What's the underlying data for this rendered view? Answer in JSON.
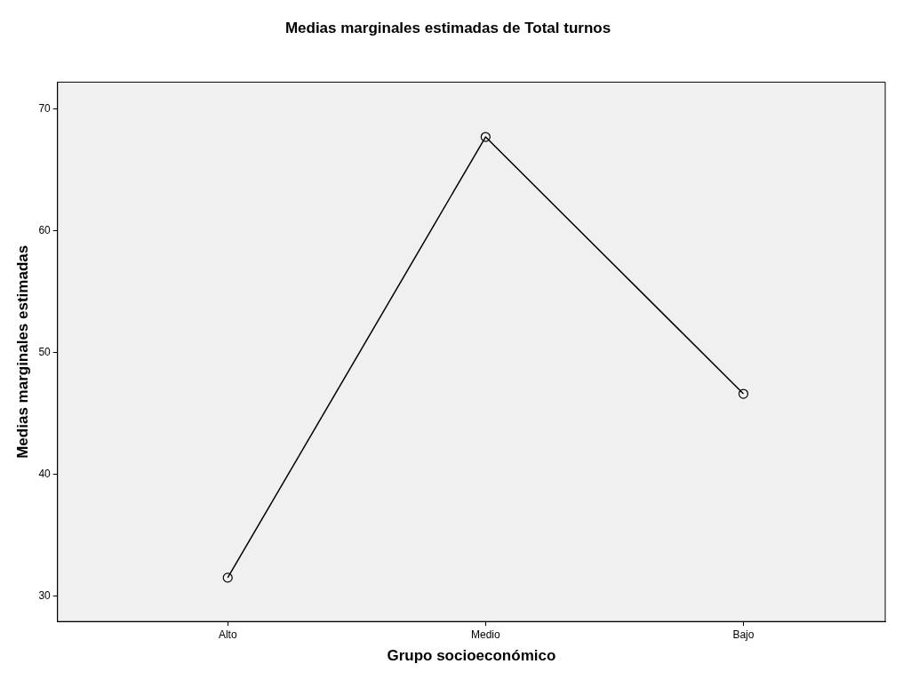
{
  "chart_data": {
    "type": "line",
    "title": "Medias marginales estimadas de Total turnos",
    "xlabel": "Grupo socioeconómico",
    "ylabel": "Medias marginales estimadas",
    "categories": [
      "Alto",
      "Medio",
      "Bajo"
    ],
    "series": [
      {
        "color": "#000000",
        "values": [
          31.5,
          67.7,
          46.6
        ]
      }
    ],
    "ylim": [
      27.9,
      72.2
    ],
    "yticks": [
      30,
      40,
      50,
      60,
      70
    ],
    "grid": false,
    "legend": false,
    "marker": "circle",
    "line_style": "solid"
  }
}
